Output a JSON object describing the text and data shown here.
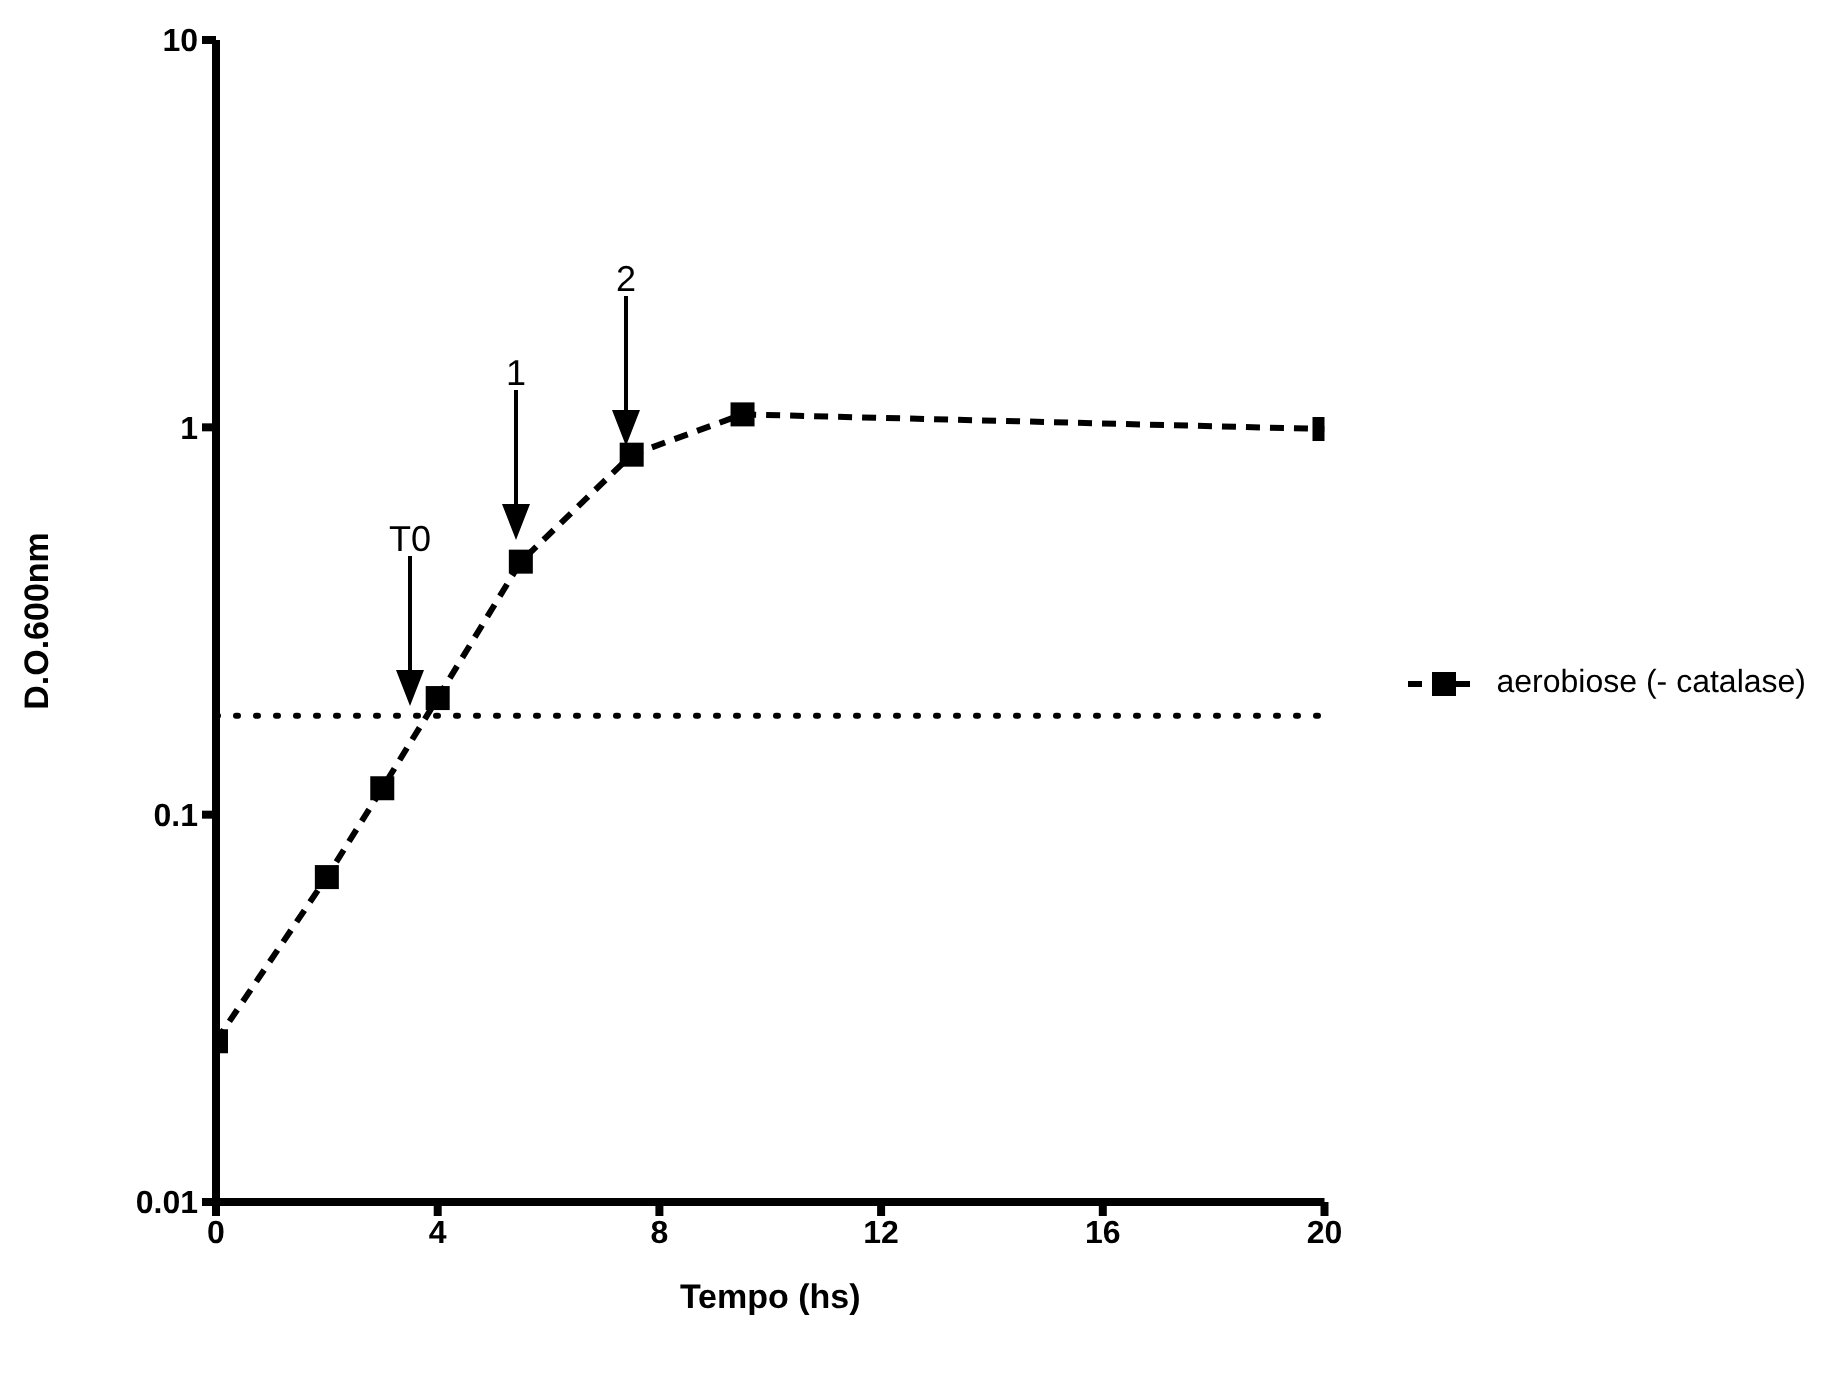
{
  "chart_data": {
    "type": "line",
    "xlabel": "Tempo (hs)",
    "ylabel": "D.O.600nm",
    "xlim": [
      0,
      20
    ],
    "xticks": [
      0,
      4,
      8,
      12,
      16,
      20
    ],
    "ylim": [
      0.01,
      10
    ],
    "yticks": [
      0.01,
      0.1,
      1,
      10
    ],
    "log": "y",
    "x": [
      0,
      2,
      3,
      4,
      5.5,
      7.5,
      9.5,
      20
    ],
    "series": [
      {
        "name": "aerobiose (- catalase)",
        "color": "#000000",
        "values": [
          0.026,
          0.069,
          0.117,
          0.2,
          0.45,
          0.85,
          1.08,
          0.99
        ]
      }
    ],
    "marker": "square",
    "line_style": "dashed",
    "legend": "right",
    "ref_lines": [
      {
        "axis": "y",
        "value": 0.18,
        "line_style": "dotted",
        "color": "#000000"
      }
    ],
    "annotations": [
      "T0",
      "1",
      "2"
    ]
  }
}
